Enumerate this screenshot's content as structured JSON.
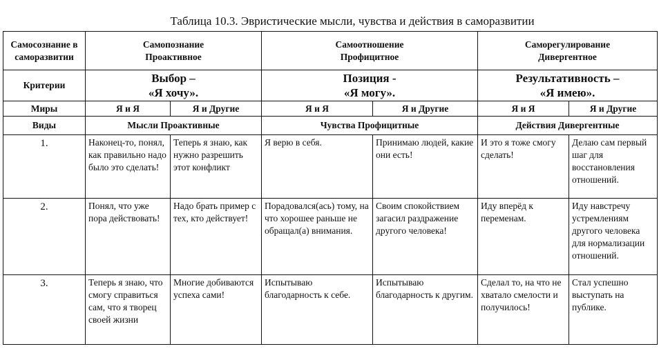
{
  "title": "Таблица 10.3. Эвристические мысли, чувства и действия в саморазвитии",
  "table": {
    "corner": "Самосознание в саморазвитии",
    "groups": [
      {
        "name": "Самопознание",
        "type": "Проактивное",
        "criterion_1": "Выбор –",
        "criterion_2": "«Я хочу».",
        "kind": "Мысли Проактивные"
      },
      {
        "name": "Самоотношение",
        "type": "Профицитное",
        "criterion_1": "Позиция -",
        "criterion_2": "«Я могу».",
        "kind": "Чувства Профицитные"
      },
      {
        "name": "Саморегулирование",
        "type": "Дивергентное",
        "criterion_1": "Результативность –",
        "criterion_2": "«Я имею».",
        "kind": "Действия Дивергентные"
      }
    ],
    "criteria_label": "Критерии",
    "worlds_label": "Миры",
    "world_self": "Я и Я",
    "world_others": "Я и Другие",
    "kinds_label": "Виды",
    "rows": [
      {
        "num": "1.",
        "cells": [
          "Наконец-то, понял, как правильно надо было это сделать!",
          "Теперь я знаю, как нужно разрешить этот конфликт",
          "Я верю в себя.",
          "Принимаю людей, какие они есть!",
          "И это я тоже смогу сделать!",
          "Делаю сам первый шаг для восстановления отношений."
        ]
      },
      {
        "num": "2.",
        "cells": [
          "Понял, что уже пора действовать!",
          "Надо брать пример с тех, кто действует!",
          "Порадовался(ась) тому, на что хорошее раньше не обращал(а) внимания.",
          "Своим спокойствием загасил раздражение другого человека!",
          "Иду вперёд к переменам.",
          "Иду навстречу устремлениям другого человека для нормализации отношений."
        ]
      },
      {
        "num": "3.",
        "cells": [
          "Теперь я знаю, что смогу справиться сам, что я творец своей жизни",
          "Многие добиваются успеха сами!",
          "Испытываю благодарность к себе.",
          "Испытываю благодарность к другим.",
          "Сделал то, на что не хватало смелости и получилось!",
          "Стал успешно выступать на публике."
        ]
      }
    ]
  }
}
